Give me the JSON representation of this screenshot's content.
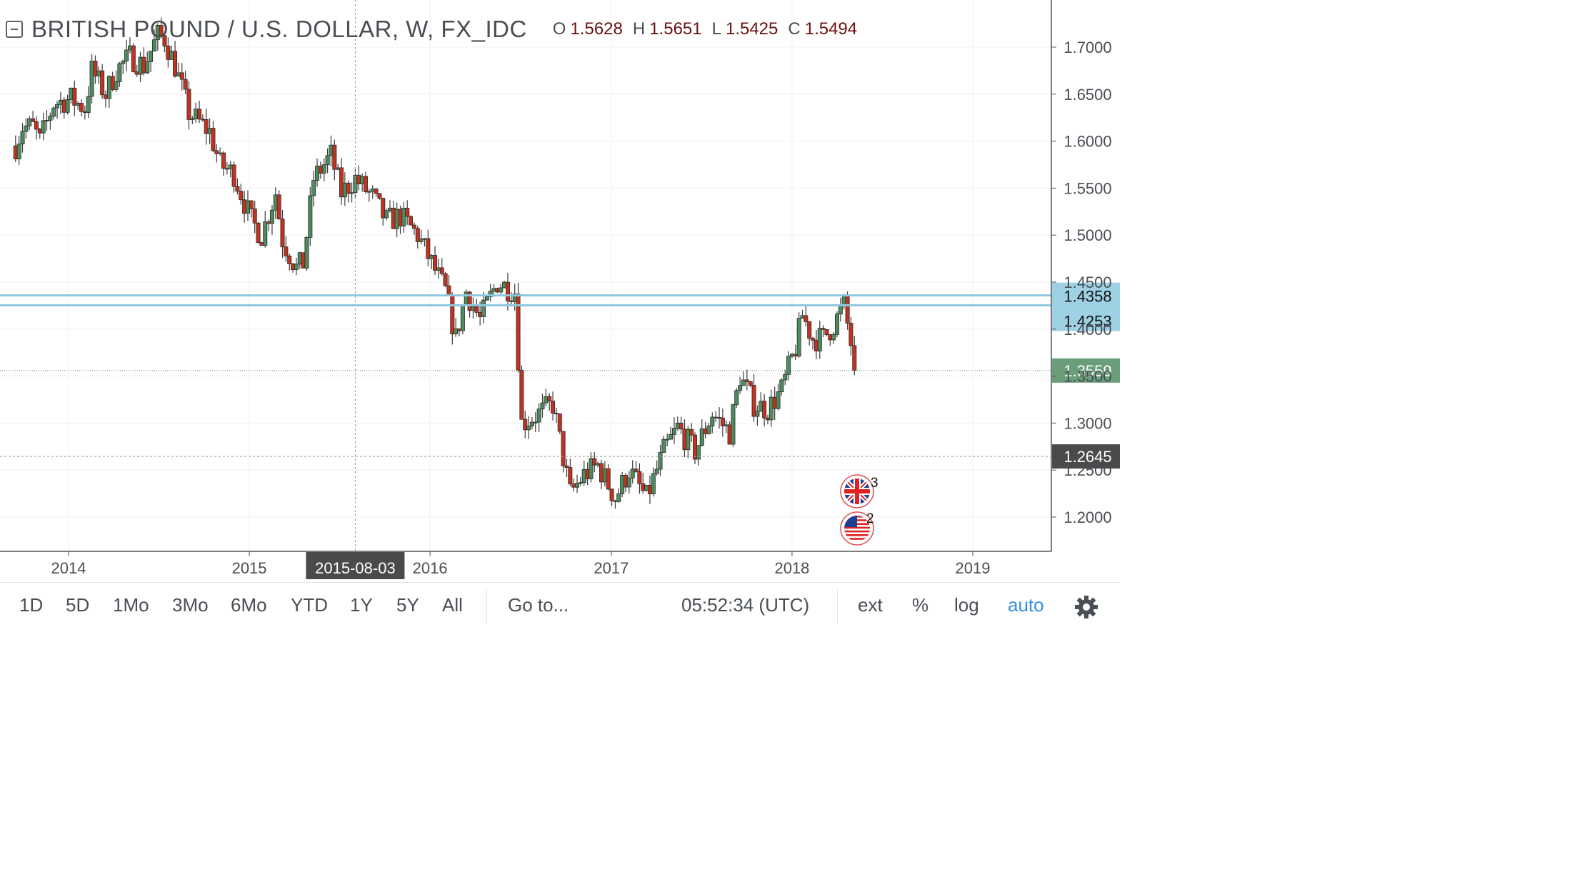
{
  "header": {
    "symbol": "BRITISH POUND / U.S. DOLLAR, W, FX_IDC",
    "ohlc": [
      {
        "key": "O",
        "value": "1.5628"
      },
      {
        "key": "H",
        "value": "1.5651"
      },
      {
        "key": "L",
        "value": "1.5425"
      },
      {
        "key": "C",
        "value": "1.5494"
      }
    ]
  },
  "toolbar": {
    "ranges": [
      "1D",
      "5D",
      "1Mo",
      "3Mo",
      "6Mo",
      "YTD",
      "1Y",
      "5Y",
      "All"
    ],
    "goto": "Go to...",
    "clock": "05:52:34 (UTC)",
    "ext": "ext",
    "percent": "%",
    "log": "log",
    "auto": "auto"
  },
  "colors": {
    "up": "#4c8b5e",
    "down": "#c2321f",
    "wick": "#3a3a3a",
    "hline": "#8fc8de",
    "price_label_green": "#6a9e78",
    "crosshair_label": "#4a4a4a",
    "hline_label": "#9fd1e4"
  },
  "chart_data": {
    "type": "candlestick",
    "title": "BRITISH POUND / U.S. DOLLAR, W, FX_IDC",
    "interval": "W",
    "y_ticks": [
      "1.2000",
      "1.2500",
      "1.3000",
      "1.3500",
      "1.4000",
      "1.4500",
      "1.5000",
      "1.5500",
      "1.6000",
      "1.6500",
      "1.7000"
    ],
    "y_range": [
      1.165,
      1.73
    ],
    "x_ticks": [
      "2014",
      "2015",
      "2016",
      "2017",
      "2018",
      "2019"
    ],
    "x_range": [
      "2013-09-16",
      "2019-06-24"
    ],
    "horizontal_lines": [
      {
        "price": 1.4358,
        "label": "1.4358"
      },
      {
        "price": 1.4253,
        "label": "1.4253"
      }
    ],
    "last_price": {
      "price": 1.3559,
      "label": "1.3559"
    },
    "crosshair": {
      "date": "2015-08-03",
      "date_label": "2015-08-03",
      "price": 1.2645,
      "price_label": "1.2645"
    },
    "event_markers": [
      {
        "flag": "uk-flag-icon",
        "count": "3"
      },
      {
        "flag": "us-flag-icon",
        "count": "2"
      }
    ],
    "anchor_closes": [
      [
        "2013-09-16",
        1.595
      ],
      [
        "2013-09-30",
        1.615
      ],
      [
        "2013-10-21",
        1.615
      ],
      [
        "2013-11-04",
        1.6
      ],
      [
        "2013-12-02",
        1.64
      ],
      [
        "2014-01-06",
        1.645
      ],
      [
        "2014-02-03",
        1.635
      ],
      [
        "2014-02-17",
        1.675
      ],
      [
        "2014-03-17",
        1.65
      ],
      [
        "2014-04-07",
        1.675
      ],
      [
        "2014-05-05",
        1.69
      ],
      [
        "2014-06-02",
        1.68
      ],
      [
        "2014-06-30",
        1.712
      ],
      [
        "2014-07-14",
        1.709
      ],
      [
        "2014-08-04",
        1.68
      ],
      [
        "2014-09-01",
        1.63
      ],
      [
        "2014-09-22",
        1.62
      ],
      [
        "2014-10-13",
        1.61
      ],
      [
        "2014-11-03",
        1.575
      ],
      [
        "2014-12-01",
        1.565
      ],
      [
        "2015-01-05",
        1.515
      ],
      [
        "2015-01-26",
        1.5
      ],
      [
        "2015-02-23",
        1.545
      ],
      [
        "2015-03-09",
        1.495
      ],
      [
        "2015-04-06",
        1.465
      ],
      [
        "2015-04-20",
        1.47
      ],
      [
        "2015-05-11",
        1.56
      ],
      [
        "2015-06-15",
        1.585
      ],
      [
        "2015-07-06",
        1.545
      ],
      [
        "2015-08-03",
        1.56
      ],
      [
        "2015-09-07",
        1.54
      ],
      [
        "2015-10-05",
        1.515
      ],
      [
        "2015-11-02",
        1.52
      ],
      [
        "2015-12-07",
        1.5
      ],
      [
        "2016-01-04",
        1.47
      ],
      [
        "2016-02-01",
        1.44
      ],
      [
        "2016-02-22",
        1.39
      ],
      [
        "2016-03-14",
        1.44
      ],
      [
        "2016-04-11",
        1.41
      ],
      [
        "2016-05-16",
        1.45
      ],
      [
        "2016-06-20",
        1.44
      ],
      [
        "2016-07-04",
        1.3
      ],
      [
        "2016-08-08",
        1.31
      ],
      [
        "2016-09-05",
        1.32
      ],
      [
        "2016-10-10",
        1.225
      ],
      [
        "2016-11-07",
        1.245
      ],
      [
        "2016-12-05",
        1.255
      ],
      [
        "2017-01-09",
        1.22
      ],
      [
        "2017-02-06",
        1.25
      ],
      [
        "2017-03-13",
        1.22
      ],
      [
        "2017-04-17",
        1.27
      ],
      [
        "2017-05-15",
        1.295
      ],
      [
        "2017-06-19",
        1.27
      ],
      [
        "2017-07-24",
        1.31
      ],
      [
        "2017-08-28",
        1.29
      ],
      [
        "2017-09-18",
        1.35
      ],
      [
        "2017-10-16",
        1.32
      ],
      [
        "2017-11-13",
        1.315
      ],
      [
        "2017-12-11",
        1.335
      ],
      [
        "2018-01-08",
        1.38
      ],
      [
        "2018-01-22",
        1.415
      ],
      [
        "2018-02-12",
        1.39
      ],
      [
        "2018-03-05",
        1.39
      ],
      [
        "2018-03-26",
        1.405
      ],
      [
        "2018-04-16",
        1.425
      ],
      [
        "2018-04-30",
        1.385
      ],
      [
        "2018-05-07",
        1.356
      ]
    ]
  }
}
